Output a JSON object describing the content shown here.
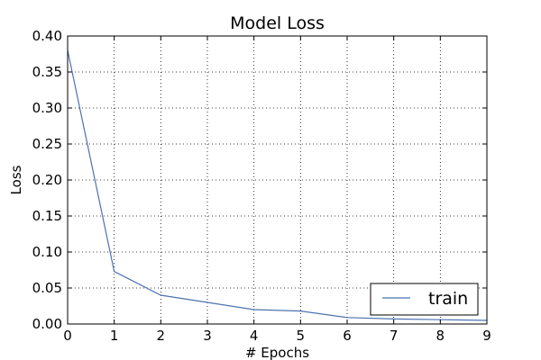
{
  "chart_data": {
    "type": "line",
    "title": "Model Loss",
    "xlabel": "# Epochs",
    "ylabel": "Loss",
    "xlim": [
      0,
      9
    ],
    "ylim": [
      0,
      0.4
    ],
    "xticks": [
      "0",
      "1",
      "2",
      "3",
      "4",
      "5",
      "6",
      "7",
      "8",
      "9"
    ],
    "yticks": [
      "0.00",
      "0.05",
      "0.10",
      "0.15",
      "0.20",
      "0.25",
      "0.30",
      "0.35",
      "0.40"
    ],
    "grid": true,
    "legend_position": "lower-right",
    "series": [
      {
        "name": "train",
        "color": "#4c72b0",
        "x": [
          0,
          1,
          2,
          3,
          4,
          5,
          6,
          7,
          8,
          9
        ],
        "y": [
          0.38,
          0.073,
          0.04,
          0.03,
          0.02,
          0.018,
          0.009,
          0.007,
          0.006,
          0.005
        ]
      }
    ]
  }
}
